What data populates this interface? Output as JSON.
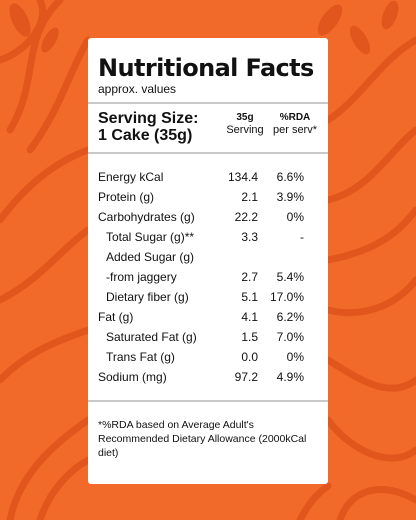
{
  "label": {
    "title": "Nutritional Facts",
    "subtitle": "approx. values",
    "serving_size_label": "Serving Size:",
    "serving_size_value": "1 Cake (35g)",
    "col_serving_top": "35g",
    "col_serving_bottom": "Serving",
    "col_rda_top": "%RDA",
    "col_rda_bottom": "per serv*",
    "footnote": "*%RDA based on Average Adult's Recommended Dietary Allowance (2000kCal diet)"
  },
  "rows": [
    {
      "name": "Energy kCal",
      "value": "134.4",
      "rda": "6.6%"
    },
    {
      "name": "Protein (g)",
      "value": "2.1",
      "rda": "3.9%"
    },
    {
      "name": "Carbohydrates (g)",
      "value": "22.2",
      "rda": "0%"
    },
    {
      "name": "Total Sugar (g)**",
      "value": "3.3",
      "rda": "-"
    },
    {
      "name": "Added Sugar (g)",
      "value": "",
      "rda": ""
    },
    {
      "name": "-from jaggery",
      "value": "2.7",
      "rda": "5.4%"
    },
    {
      "name": "Dietary fiber (g)",
      "value": "5.1",
      "rda": "17.0%"
    },
    {
      "name": "Fat (g)",
      "value": "4.1",
      "rda": "6.2%"
    },
    {
      "name": "Saturated Fat (g)",
      "value": "1.5",
      "rda": "7.0%"
    },
    {
      "name": "Trans Fat (g)",
      "value": "0.0",
      "rda": "0%"
    },
    {
      "name": "Sodium (mg)",
      "value": "97.2",
      "rda": "4.9%"
    }
  ],
  "colors": {
    "background": "#f26a2a",
    "swirl": "#e0561c",
    "card": "#ffffff"
  }
}
